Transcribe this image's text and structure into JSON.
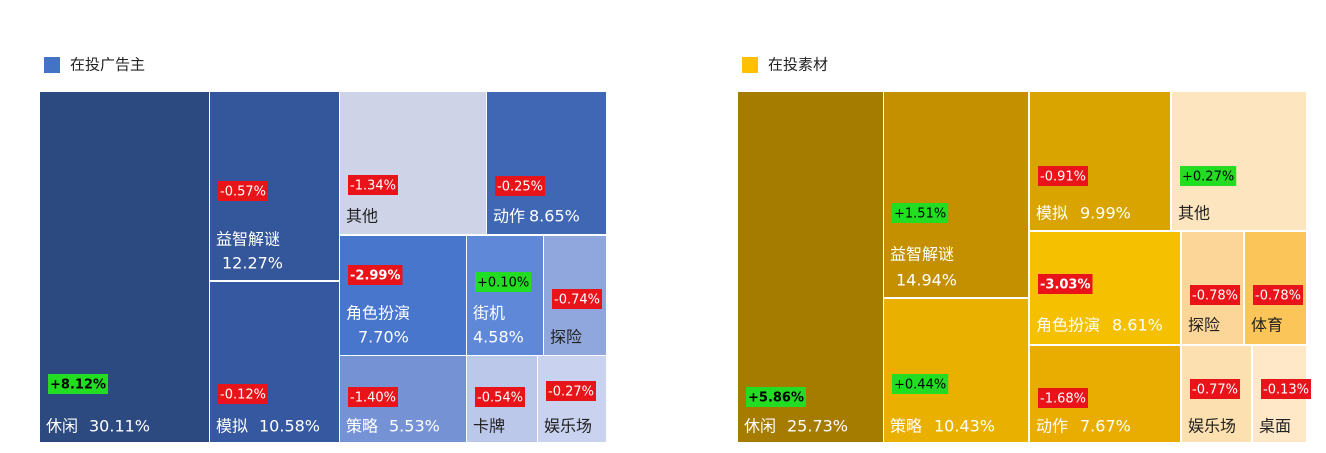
{
  "chart_data": [
    {
      "type": "treemap",
      "title": "在投广告主",
      "color": "#4472c4",
      "categories": [
        "休闲",
        "益智解谜",
        "模拟",
        "其他",
        "动作",
        "角色扮演",
        "街机",
        "探险",
        "策略",
        "卡牌",
        "娱乐场"
      ],
      "values": [
        30.11,
        12.27,
        10.58,
        null,
        8.65,
        7.7,
        4.58,
        null,
        5.53,
        null,
        null
      ],
      "value_labels": [
        "30.11%",
        "12.27%",
        "10.58%",
        null,
        "8.65%",
        "7.70%",
        "4.58%",
        null,
        "5.53%",
        null,
        null
      ],
      "changes": [
        8.12,
        -0.57,
        -0.12,
        -1.34,
        -0.25,
        -2.99,
        0.1,
        -0.74,
        -1.4,
        -0.54,
        -0.27
      ],
      "change_labels": [
        "+8.12%",
        "-0.57%",
        "-0.12%",
        "-1.34%",
        "-0.25%",
        "-2.99%",
        "+0.10%",
        "-0.74%",
        "-1.40%",
        "-0.54%",
        "-0.27%"
      ],
      "colors": [
        "#2d4a80",
        "#34569a",
        "#3558a0",
        "#cfd3e8",
        "#3f67b4",
        "#4876cc",
        "#5f89d8",
        "#90a7dd",
        "#7592d4",
        "#bcc8ea",
        "#c9d2ee"
      ]
    },
    {
      "type": "treemap",
      "title": "在投素材",
      "color": "#ffc000",
      "categories": [
        "休闲",
        "益智解谜",
        "策略",
        "模拟",
        "其他",
        "角色扮演",
        "动作",
        "探险",
        "体育",
        "娱乐场",
        "桌面"
      ],
      "values": [
        25.73,
        14.94,
        10.43,
        9.99,
        null,
        8.61,
        7.67,
        null,
        null,
        null,
        null
      ],
      "value_labels": [
        "25.73%",
        "14.94%",
        "10.43%",
        "9.99%",
        null,
        "8.61%",
        "7.67%",
        null,
        null,
        null,
        null
      ],
      "changes": [
        5.86,
        1.51,
        0.44,
        -0.91,
        0.27,
        -3.03,
        -1.68,
        -0.78,
        -0.78,
        -0.77,
        -0.13
      ],
      "change_labels": [
        "+5.86%",
        "+1.51%",
        "+0.44%",
        "-0.91%",
        "+0.27%",
        "-3.03%",
        "-1.68%",
        "-0.78%",
        "-0.78%",
        "-0.77%",
        "-0.13%"
      ],
      "colors": [
        "#a67c00",
        "#c49000",
        "#eab000",
        "#d9a300",
        "#fde5bf",
        "#f5c000",
        "#e8ad00",
        "#fcd698",
        "#fcc55a",
        "#fde0b0",
        "#fee8c8"
      ]
    }
  ]
}
